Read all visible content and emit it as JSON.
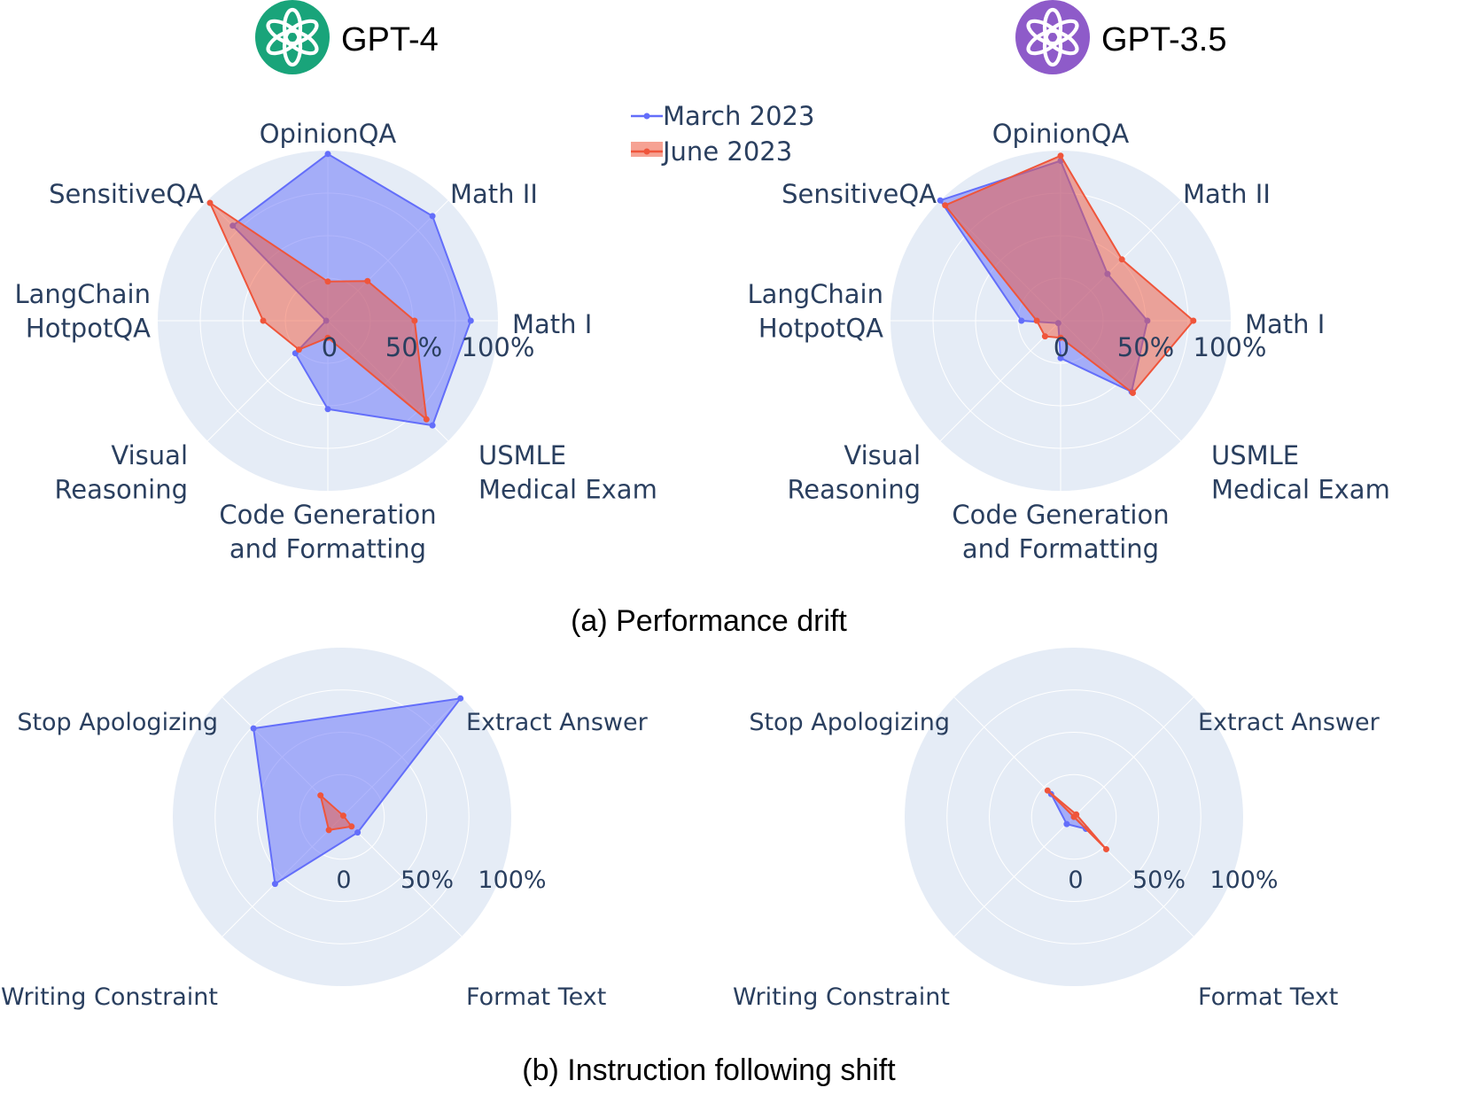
{
  "models": [
    {
      "title": "GPT-4",
      "logo_color": "#19a47a",
      "logo_icon": "openai-logo-icon"
    },
    {
      "title": "GPT-3.5",
      "logo_color": "#8e5bc9",
      "logo_icon": "openai-logo-icon"
    }
  ],
  "captions": {
    "a": "(a) Performance drift",
    "b": "(b) Instruction following shift"
  },
  "legend": [
    {
      "name": "March 2023",
      "color": "#636efa"
    },
    {
      "name": "June 2023",
      "color": "#ef553b"
    }
  ],
  "colors": {
    "polar_bg": "#e5ecf6",
    "text": "#2a3f5f",
    "march": "#636efa",
    "june": "#ef553b"
  },
  "chart_data": [
    {
      "type": "radar",
      "model": "GPT-4",
      "panel": "(a) Performance drift",
      "axes": [
        "Math I",
        "Math II",
        "OpinionQA",
        "SensitiveQA",
        "LangChain\nHotpotQA",
        "Visual\nReasoning",
        "Code Generation\nand Formatting",
        "USMLE\nMedical Exam"
      ],
      "radial_ticks": [
        "0",
        "50%",
        "100%"
      ],
      "range": [
        0,
        100
      ],
      "series": [
        {
          "name": "March 2023",
          "values": [
            84,
            87,
            98,
            79,
            1,
            27,
            52,
            87
          ]
        },
        {
          "name": "June 2023",
          "values": [
            51,
            33,
            23,
            98,
            38,
            24,
            10,
            82
          ]
        }
      ]
    },
    {
      "type": "radar",
      "model": "GPT-3.5",
      "panel": "(a) Performance drift",
      "axes": [
        "Math I",
        "Math II",
        "OpinionQA",
        "SensitiveQA",
        "LangChain\nHotpotQA",
        "Visual\nReasoning",
        "Code Generation\nand Formatting",
        "USMLE\nMedical Exam"
      ],
      "radial_ticks": [
        "0",
        "50%",
        "100%"
      ],
      "range": [
        0,
        100
      ],
      "series": [
        {
          "name": "March 2023",
          "values": [
            51,
            39,
            94,
            100,
            23,
            2,
            22,
            59
          ]
        },
        {
          "name": "June 2023",
          "values": [
            78,
            51,
            97,
            96,
            14,
            13,
            10,
            60
          ]
        }
      ]
    },
    {
      "type": "radar",
      "model": "GPT-4",
      "panel": "(b) Instruction following shift",
      "axes": [
        "Extract Answer",
        "Stop Apologizing",
        "Writing Constraint",
        "Format Text"
      ],
      "radial_ticks": [
        "0",
        "50%",
        "100%"
      ],
      "range": [
        0,
        100
      ],
      "series": [
        {
          "name": "March 2023",
          "values": [
            99,
            74,
            56,
            13
          ]
        },
        {
          "name": "June 2023",
          "values": [
            1,
            18,
            11,
            8
          ]
        }
      ]
    },
    {
      "type": "radar",
      "model": "GPT-3.5",
      "panel": "(b) Instruction following shift",
      "axes": [
        "Extract Answer",
        "Stop Apologizing",
        "Writing Constraint",
        "Format Text"
      ],
      "radial_ticks": [
        "0",
        "50%",
        "100%"
      ],
      "range": [
        0,
        100
      ],
      "series": [
        {
          "name": "March 2023",
          "values": [
            0,
            19,
            6,
            10
          ]
        },
        {
          "name": "June 2023",
          "values": [
            2,
            22,
            0,
            27
          ]
        }
      ]
    }
  ]
}
